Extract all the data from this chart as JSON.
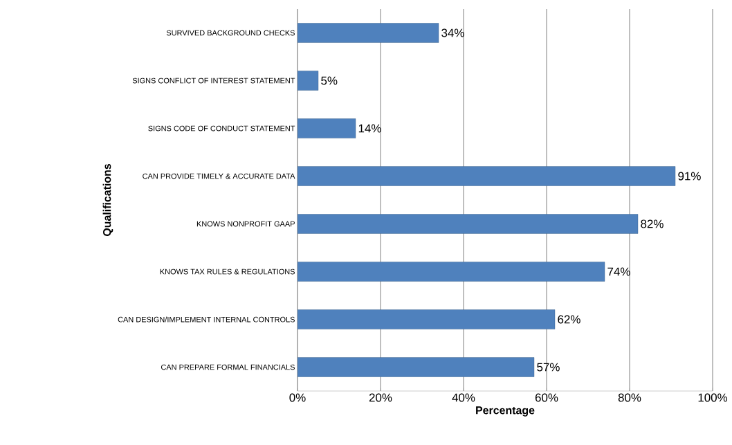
{
  "chart_data": {
    "type": "bar",
    "orientation": "horizontal",
    "xlabel": "Percentage",
    "ylabel": "Qualifications",
    "categories": [
      "SURVIVED BACKGROUND CHECKS",
      "SIGNS CONFLICT OF INTEREST STATEMENT",
      "SIGNS CODE OF CONDUCT STATEMENT",
      "CAN PROVIDE TIMELY & ACCURATE DATA",
      "KNOWS NONPROFIT GAAP",
      "KNOWS TAX RULES & REGULATIONS",
      "CAN DESIGN/IMPLEMENT INTERNAL CONTROLS",
      "CAN PREPARE FORMAL FINANCIALS"
    ],
    "values": [
      34,
      5,
      14,
      91,
      82,
      74,
      62,
      57
    ],
    "value_labels": [
      "34%",
      "5%",
      "14%",
      "91%",
      "82%",
      "74%",
      "62%",
      "57%"
    ],
    "color": "#4f81bd",
    "xlim": [
      0,
      100
    ],
    "xticks": [
      {
        "value": 0,
        "label": "0%"
      },
      {
        "value": 20,
        "label": "20%"
      },
      {
        "value": 40,
        "label": "40%"
      },
      {
        "value": 60,
        "label": "60%"
      },
      {
        "value": 80,
        "label": "80%"
      },
      {
        "value": 100,
        "label": "100%"
      }
    ],
    "grid": "x"
  }
}
